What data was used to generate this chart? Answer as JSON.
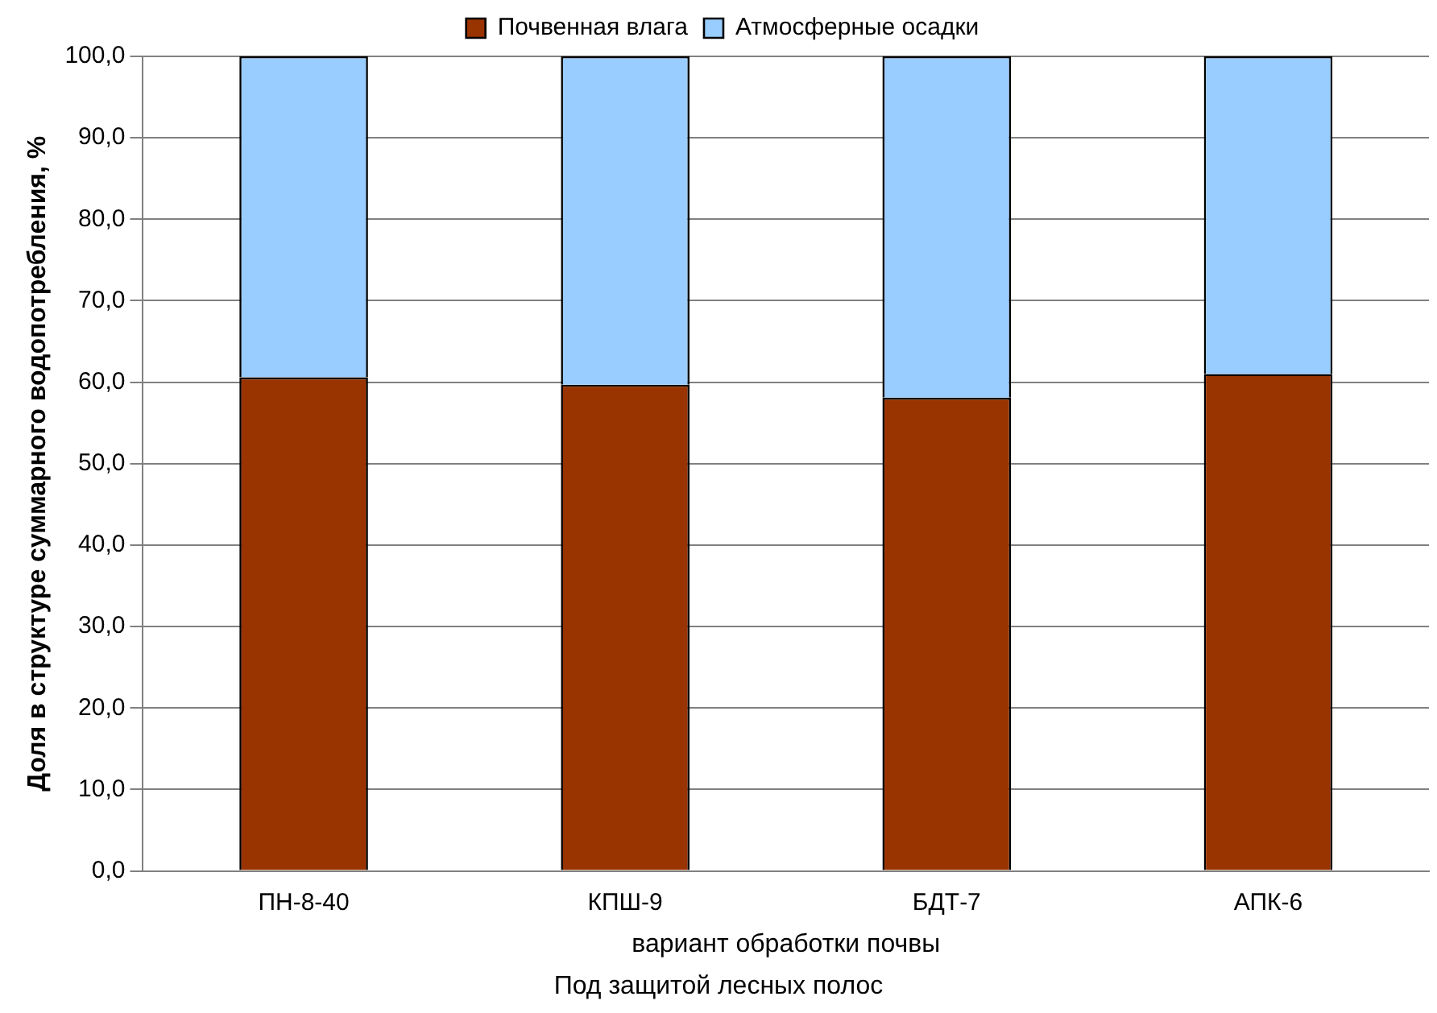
{
  "chart_data": {
    "type": "bar",
    "stacked": true,
    "categories": [
      "ПН-8-40",
      "КПШ-9",
      "БДТ-7",
      "АПК-6"
    ],
    "series": [
      {
        "name": "Почвенная влага",
        "color": "#993300",
        "values": [
          60.6,
          59.7,
          58.1,
          61.0
        ]
      },
      {
        "name": "Атмосферные осадки",
        "color": "#99ccff",
        "values": [
          39.4,
          40.3,
          41.9,
          39.0
        ]
      }
    ],
    "ylim": [
      0,
      100
    ],
    "yticks": [
      {
        "value": 0,
        "label": "0,0"
      },
      {
        "value": 10,
        "label": "10,0"
      },
      {
        "value": 20,
        "label": "20,0"
      },
      {
        "value": 30,
        "label": "30,0"
      },
      {
        "value": 40,
        "label": "40,0"
      },
      {
        "value": 50,
        "label": "50,0"
      },
      {
        "value": 60,
        "label": "60,0"
      },
      {
        "value": 70,
        "label": "70,0"
      },
      {
        "value": 80,
        "label": "80,0"
      },
      {
        "value": 90,
        "label": "90,0"
      },
      {
        "value": 100,
        "label": "100,0"
      }
    ],
    "ylabel": "Доля в структуре суммарного водопотребления, %",
    "xlabel": "вариант обработки почвы",
    "annotations": [
      "Под защитой лесных полос"
    ],
    "grid": "y",
    "legend": "top"
  }
}
